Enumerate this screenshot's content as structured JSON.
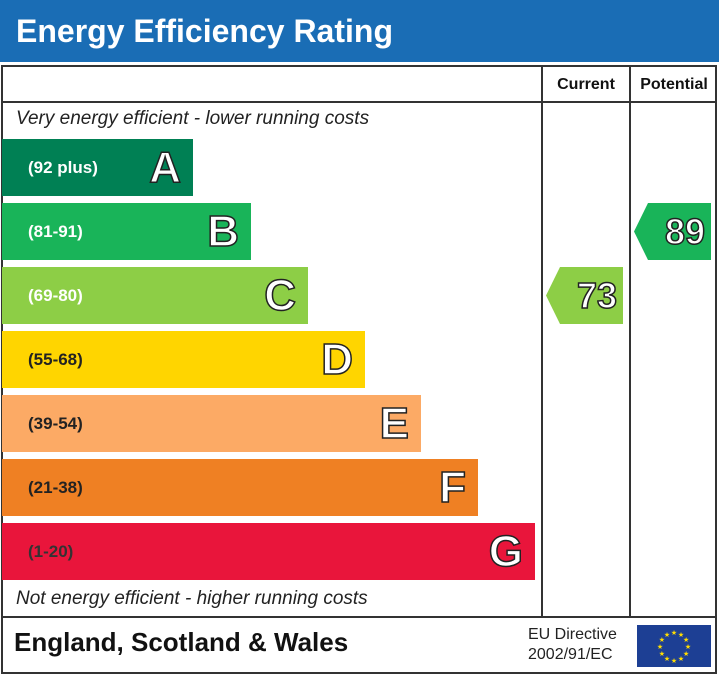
{
  "chart_data": {
    "type": "bar",
    "title": "Energy Efficiency Rating",
    "columns": [
      "Current",
      "Potential"
    ],
    "top_note": "Very energy efficient - lower running costs",
    "bottom_note": "Not energy efficient - higher running costs",
    "bands": [
      {
        "letter": "A",
        "range": "(92 plus)",
        "color": "#008054",
        "text_color": "#ffffff"
      },
      {
        "letter": "B",
        "range": "(81-91)",
        "color": "#19b459",
        "text_color": "#ffffff"
      },
      {
        "letter": "C",
        "range": "(69-80)",
        "color": "#8dce46",
        "text_color": "#ffffff"
      },
      {
        "letter": "D",
        "range": "(55-68)",
        "color": "#ffd500",
        "text_color": "#222222"
      },
      {
        "letter": "E",
        "range": "(39-54)",
        "color": "#fcaa65",
        "text_color": "#222222"
      },
      {
        "letter": "F",
        "range": "(21-38)",
        "color": "#ef8023",
        "text_color": "#222222"
      },
      {
        "letter": "G",
        "range": "(1-20)",
        "color": "#e9153b",
        "text_color": "#333333"
      }
    ],
    "current": {
      "value": 73,
      "band": "C"
    },
    "potential": {
      "value": 89,
      "band": "B"
    }
  },
  "footer": {
    "country": "England, Scotland & Wales",
    "directive_line1": "EU Directive",
    "directive_line2": "2002/91/EC"
  },
  "colors": {
    "title_bg": "#1a6db5",
    "eu_flag": "#1d3f94"
  }
}
